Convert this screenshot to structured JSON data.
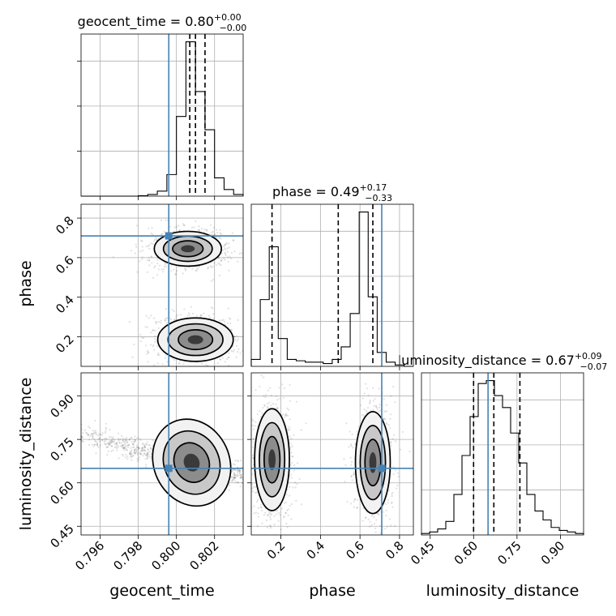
{
  "chart_data": {
    "type": "corner",
    "truth_color": "#4682b4",
    "parameters": [
      {
        "name": "geocent_time",
        "axis_label": "geocent_time",
        "range": [
          0.795,
          0.8035
        ],
        "ticks": [
          0.796,
          0.798,
          0.8,
          0.802
        ],
        "tick_labels": [
          "0.796",
          "0.798",
          "0.800",
          "0.802"
        ],
        "truth": 0.7996,
        "quantiles": [
          0.8007,
          0.801,
          0.8015
        ],
        "title_prefix": "geocent_time = 0.80",
        "title_sup": "+0.00",
        "title_sub": "−0.00",
        "histogram": {
          "edges": [
            0.795,
            0.7955,
            0.796,
            0.7965,
            0.797,
            0.7975,
            0.798,
            0.7985,
            0.799,
            0.7995,
            0.8,
            0.8005,
            0.801,
            0.8015,
            0.802,
            0.8025,
            0.803,
            0.8035
          ],
          "counts": [
            0,
            0,
            0,
            0,
            0,
            0,
            0.3,
            1,
            3,
            13,
            48,
            93,
            63,
            40,
            11,
            4,
            1
          ]
        }
      },
      {
        "name": "phase",
        "axis_label": "phase",
        "range": [
          0.05,
          0.87
        ],
        "ticks": [
          0.2,
          0.4,
          0.6,
          0.8
        ],
        "tick_labels": [
          "0.2",
          "0.4",
          "0.6",
          "0.8"
        ],
        "truth": 0.71,
        "quantiles": [
          0.155,
          0.49,
          0.665
        ],
        "title_prefix": "phase = 0.49",
        "title_sup": "+0.17",
        "title_sub": "−0.33",
        "histogram": {
          "edges": [
            0.05,
            0.0955,
            0.141,
            0.1865,
            0.232,
            0.2775,
            0.323,
            0.3685,
            0.414,
            0.4595,
            0.505,
            0.5505,
            0.596,
            0.6415,
            0.687,
            0.7325,
            0.778,
            0.8235,
            0.87
          ],
          "counts": [
            5,
            48,
            86,
            20,
            5,
            4,
            3,
            3,
            2,
            5,
            14,
            38,
            111,
            50,
            10,
            3,
            1,
            0
          ]
        }
      },
      {
        "name": "luminosity_distance",
        "axis_label": "luminosity_distance",
        "range": [
          0.42,
          0.98
        ],
        "ticks": [
          0.45,
          0.6,
          0.75,
          0.9
        ],
        "tick_labels": [
          "0.45",
          "0.60",
          "0.75",
          "0.90"
        ],
        "truth": 0.65,
        "quantiles": [
          0.6,
          0.67,
          0.76
        ],
        "title_prefix": "luminosity_distance = 0.67",
        "title_sup": "+0.09",
        "title_sub": "−0.07",
        "histogram": {
          "edges": [
            0.42,
            0.448,
            0.476,
            0.504,
            0.532,
            0.56,
            0.588,
            0.616,
            0.644,
            0.672,
            0.7,
            0.728,
            0.756,
            0.784,
            0.812,
            0.84,
            0.868,
            0.896,
            0.924,
            0.952,
            0.98
          ],
          "counts": [
            1,
            2,
            4,
            9,
            27,
            53,
            79,
            101,
            103,
            93,
            85,
            68,
            48,
            27,
            16,
            10,
            5,
            3,
            2,
            1
          ]
        }
      }
    ]
  }
}
